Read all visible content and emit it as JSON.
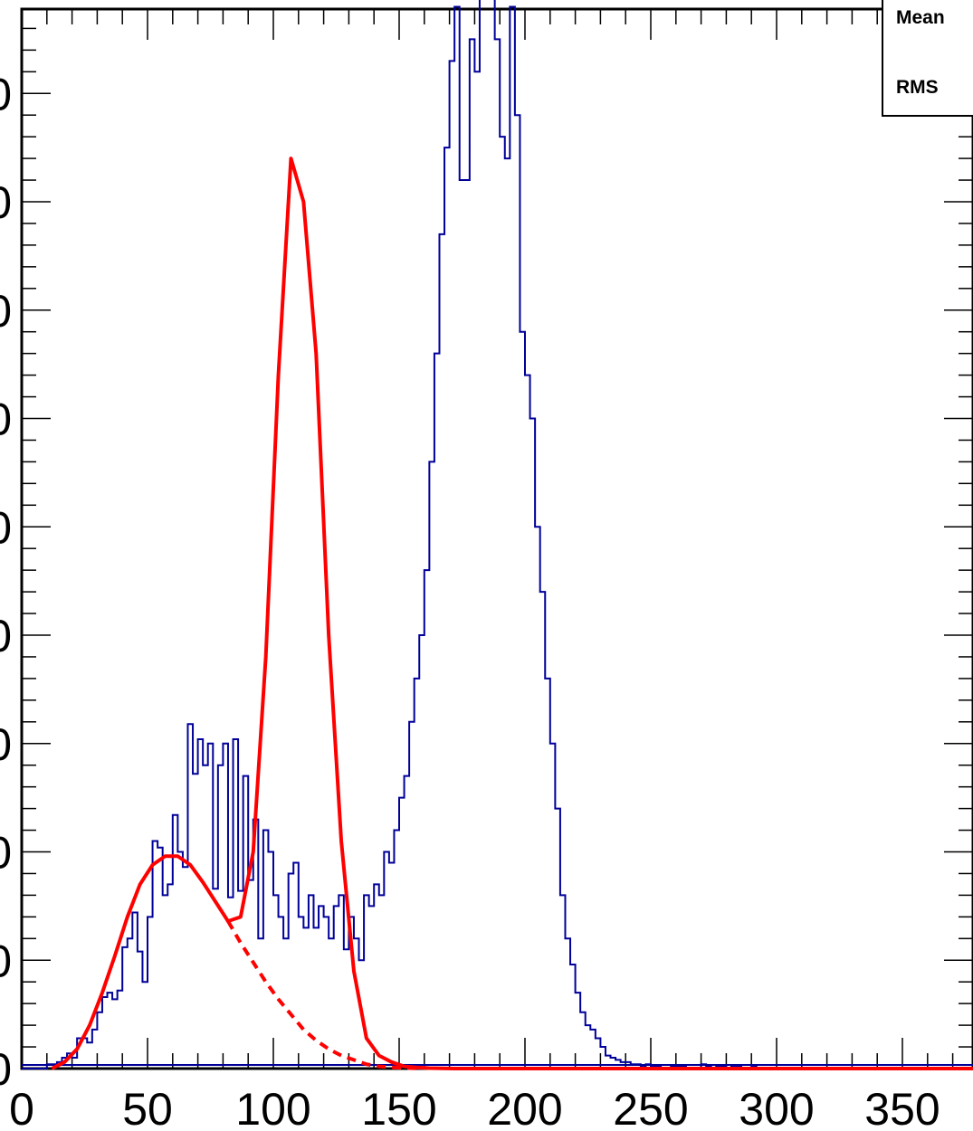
{
  "stats_box": {
    "mean_label": "Mean",
    "rms_label": "RMS"
  },
  "chart_data": {
    "type": "histogram",
    "title": "",
    "xlabel": "",
    "ylabel": "",
    "xlim": [
      0,
      385
    ],
    "ylim": [
      0,
      490
    ],
    "x_tick_labels": [
      "0",
      "50",
      "100",
      "150",
      "200",
      "250",
      "300",
      "350"
    ],
    "x_tick_values": [
      0,
      50,
      100,
      150,
      200,
      250,
      300,
      350
    ],
    "y_tick_values": [
      0,
      50,
      100,
      150,
      200,
      250,
      300,
      350,
      400,
      450
    ],
    "y_tick_labels": [
      "0",
      "0",
      "0",
      "0",
      "0",
      "0",
      "0",
      "0",
      "0",
      "0"
    ],
    "grid": false,
    "colors": {
      "histogram": "#000099",
      "fit": "#ff0000",
      "background_fit": "#ff0000"
    },
    "histogram": {
      "name": "",
      "bin_width": 2,
      "bin_start": 10,
      "counts": [
        2,
        2,
        3,
        5,
        7,
        5,
        14,
        14,
        12,
        18,
        26,
        33,
        35,
        32,
        36,
        56,
        60,
        72,
        54,
        40,
        70,
        105,
        102,
        80,
        85,
        117,
        100,
        93,
        159,
        136,
        152,
        140,
        150,
        83,
        140,
        150,
        79,
        152,
        82,
        135,
        87,
        115,
        60,
        110,
        100,
        80,
        70,
        60,
        90,
        95,
        70,
        65,
        80,
        65,
        75,
        70,
        60,
        75,
        80,
        55,
        70,
        60,
        50,
        80,
        75,
        85,
        80,
        100,
        95,
        110,
        125,
        135,
        160,
        180,
        200,
        230,
        280,
        330,
        385,
        425,
        465,
        490,
        410,
        410,
        475,
        460,
        500,
        530,
        545,
        475,
        430,
        420,
        490,
        440,
        340,
        320,
        300,
        250,
        220,
        180,
        150,
        120,
        80,
        60,
        48,
        35,
        26,
        20,
        18,
        14,
        10,
        6,
        5,
        4,
        3,
        3,
        2,
        2,
        1,
        2,
        1,
        1,
        0,
        0,
        1,
        1,
        1,
        0,
        0,
        0,
        2,
        1,
        0,
        1,
        1,
        0,
        1,
        1,
        0,
        0,
        1
      ]
    },
    "fit_total": {
      "name": "",
      "style": "solid",
      "x": [
        12,
        17,
        22,
        27,
        32,
        37,
        42,
        47,
        52,
        57,
        62,
        67,
        72,
        77,
        82,
        87,
        92,
        97,
        102,
        107,
        112,
        117,
        122,
        127,
        132,
        137,
        142,
        147,
        152,
        157,
        162,
        167,
        172,
        180,
        200,
        250,
        300,
        350,
        385
      ],
      "y": [
        0,
        3,
        9,
        20,
        35,
        52,
        70,
        85,
        94,
        98,
        98,
        94,
        86,
        77,
        68,
        70,
        100,
        190,
        320,
        420,
        400,
        330,
        200,
        105,
        45,
        14,
        6,
        3,
        1,
        0.5,
        0.2,
        0.1,
        0,
        0,
        0,
        0,
        0,
        0,
        0
      ]
    },
    "fit_background": {
      "name": "",
      "style": "dashed",
      "x": [
        82,
        87,
        92,
        97,
        102,
        107,
        112,
        117,
        122,
        127,
        132,
        137,
        142,
        147,
        152,
        157
      ],
      "y": [
        68,
        58,
        49,
        40,
        32,
        25,
        18,
        13,
        9,
        6,
        4,
        2,
        1,
        0.6,
        0.3,
        0.1
      ]
    }
  }
}
